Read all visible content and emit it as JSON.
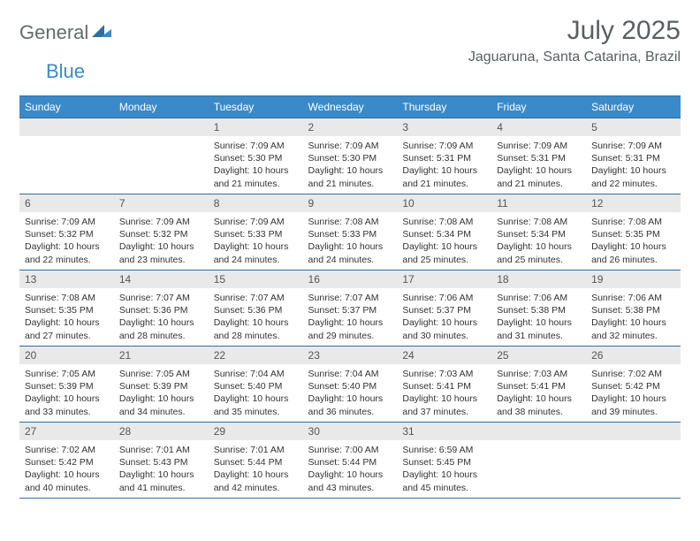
{
  "logo": {
    "text1": "General",
    "text2": "Blue",
    "color_general": "#646a6e",
    "color_blue": "#3a8ac9"
  },
  "header": {
    "month_title": "July 2025",
    "location": "Jaguaruna, Santa Catarina, Brazil"
  },
  "theme": {
    "header_bg": "#3a8ac9",
    "header_text": "#ffffff",
    "border_color": "#2e6fa3",
    "daynum_bg": "#e9e9e9",
    "text_color": "#333333"
  },
  "calendar": {
    "day_headers": [
      "Sunday",
      "Monday",
      "Tuesday",
      "Wednesday",
      "Thursday",
      "Friday",
      "Saturday"
    ],
    "weeks": [
      [
        {
          "day": "",
          "sunrise": "",
          "sunset": "",
          "daylight": ""
        },
        {
          "day": "",
          "sunrise": "",
          "sunset": "",
          "daylight": ""
        },
        {
          "day": "1",
          "sunrise": "Sunrise: 7:09 AM",
          "sunset": "Sunset: 5:30 PM",
          "daylight": "Daylight: 10 hours and 21 minutes."
        },
        {
          "day": "2",
          "sunrise": "Sunrise: 7:09 AM",
          "sunset": "Sunset: 5:30 PM",
          "daylight": "Daylight: 10 hours and 21 minutes."
        },
        {
          "day": "3",
          "sunrise": "Sunrise: 7:09 AM",
          "sunset": "Sunset: 5:31 PM",
          "daylight": "Daylight: 10 hours and 21 minutes."
        },
        {
          "day": "4",
          "sunrise": "Sunrise: 7:09 AM",
          "sunset": "Sunset: 5:31 PM",
          "daylight": "Daylight: 10 hours and 21 minutes."
        },
        {
          "day": "5",
          "sunrise": "Sunrise: 7:09 AM",
          "sunset": "Sunset: 5:31 PM",
          "daylight": "Daylight: 10 hours and 22 minutes."
        }
      ],
      [
        {
          "day": "6",
          "sunrise": "Sunrise: 7:09 AM",
          "sunset": "Sunset: 5:32 PM",
          "daylight": "Daylight: 10 hours and 22 minutes."
        },
        {
          "day": "7",
          "sunrise": "Sunrise: 7:09 AM",
          "sunset": "Sunset: 5:32 PM",
          "daylight": "Daylight: 10 hours and 23 minutes."
        },
        {
          "day": "8",
          "sunrise": "Sunrise: 7:09 AM",
          "sunset": "Sunset: 5:33 PM",
          "daylight": "Daylight: 10 hours and 24 minutes."
        },
        {
          "day": "9",
          "sunrise": "Sunrise: 7:08 AM",
          "sunset": "Sunset: 5:33 PM",
          "daylight": "Daylight: 10 hours and 24 minutes."
        },
        {
          "day": "10",
          "sunrise": "Sunrise: 7:08 AM",
          "sunset": "Sunset: 5:34 PM",
          "daylight": "Daylight: 10 hours and 25 minutes."
        },
        {
          "day": "11",
          "sunrise": "Sunrise: 7:08 AM",
          "sunset": "Sunset: 5:34 PM",
          "daylight": "Daylight: 10 hours and 25 minutes."
        },
        {
          "day": "12",
          "sunrise": "Sunrise: 7:08 AM",
          "sunset": "Sunset: 5:35 PM",
          "daylight": "Daylight: 10 hours and 26 minutes."
        }
      ],
      [
        {
          "day": "13",
          "sunrise": "Sunrise: 7:08 AM",
          "sunset": "Sunset: 5:35 PM",
          "daylight": "Daylight: 10 hours and 27 minutes."
        },
        {
          "day": "14",
          "sunrise": "Sunrise: 7:07 AM",
          "sunset": "Sunset: 5:36 PM",
          "daylight": "Daylight: 10 hours and 28 minutes."
        },
        {
          "day": "15",
          "sunrise": "Sunrise: 7:07 AM",
          "sunset": "Sunset: 5:36 PM",
          "daylight": "Daylight: 10 hours and 28 minutes."
        },
        {
          "day": "16",
          "sunrise": "Sunrise: 7:07 AM",
          "sunset": "Sunset: 5:37 PM",
          "daylight": "Daylight: 10 hours and 29 minutes."
        },
        {
          "day": "17",
          "sunrise": "Sunrise: 7:06 AM",
          "sunset": "Sunset: 5:37 PM",
          "daylight": "Daylight: 10 hours and 30 minutes."
        },
        {
          "day": "18",
          "sunrise": "Sunrise: 7:06 AM",
          "sunset": "Sunset: 5:38 PM",
          "daylight": "Daylight: 10 hours and 31 minutes."
        },
        {
          "day": "19",
          "sunrise": "Sunrise: 7:06 AM",
          "sunset": "Sunset: 5:38 PM",
          "daylight": "Daylight: 10 hours and 32 minutes."
        }
      ],
      [
        {
          "day": "20",
          "sunrise": "Sunrise: 7:05 AM",
          "sunset": "Sunset: 5:39 PM",
          "daylight": "Daylight: 10 hours and 33 minutes."
        },
        {
          "day": "21",
          "sunrise": "Sunrise: 7:05 AM",
          "sunset": "Sunset: 5:39 PM",
          "daylight": "Daylight: 10 hours and 34 minutes."
        },
        {
          "day": "22",
          "sunrise": "Sunrise: 7:04 AM",
          "sunset": "Sunset: 5:40 PM",
          "daylight": "Daylight: 10 hours and 35 minutes."
        },
        {
          "day": "23",
          "sunrise": "Sunrise: 7:04 AM",
          "sunset": "Sunset: 5:40 PM",
          "daylight": "Daylight: 10 hours and 36 minutes."
        },
        {
          "day": "24",
          "sunrise": "Sunrise: 7:03 AM",
          "sunset": "Sunset: 5:41 PM",
          "daylight": "Daylight: 10 hours and 37 minutes."
        },
        {
          "day": "25",
          "sunrise": "Sunrise: 7:03 AM",
          "sunset": "Sunset: 5:41 PM",
          "daylight": "Daylight: 10 hours and 38 minutes."
        },
        {
          "day": "26",
          "sunrise": "Sunrise: 7:02 AM",
          "sunset": "Sunset: 5:42 PM",
          "daylight": "Daylight: 10 hours and 39 minutes."
        }
      ],
      [
        {
          "day": "27",
          "sunrise": "Sunrise: 7:02 AM",
          "sunset": "Sunset: 5:42 PM",
          "daylight": "Daylight: 10 hours and 40 minutes."
        },
        {
          "day": "28",
          "sunrise": "Sunrise: 7:01 AM",
          "sunset": "Sunset: 5:43 PM",
          "daylight": "Daylight: 10 hours and 41 minutes."
        },
        {
          "day": "29",
          "sunrise": "Sunrise: 7:01 AM",
          "sunset": "Sunset: 5:44 PM",
          "daylight": "Daylight: 10 hours and 42 minutes."
        },
        {
          "day": "30",
          "sunrise": "Sunrise: 7:00 AM",
          "sunset": "Sunset: 5:44 PM",
          "daylight": "Daylight: 10 hours and 43 minutes."
        },
        {
          "day": "31",
          "sunrise": "Sunrise: 6:59 AM",
          "sunset": "Sunset: 5:45 PM",
          "daylight": "Daylight: 10 hours and 45 minutes."
        },
        {
          "day": "",
          "sunrise": "",
          "sunset": "",
          "daylight": ""
        },
        {
          "day": "",
          "sunrise": "",
          "sunset": "",
          "daylight": ""
        }
      ]
    ]
  }
}
